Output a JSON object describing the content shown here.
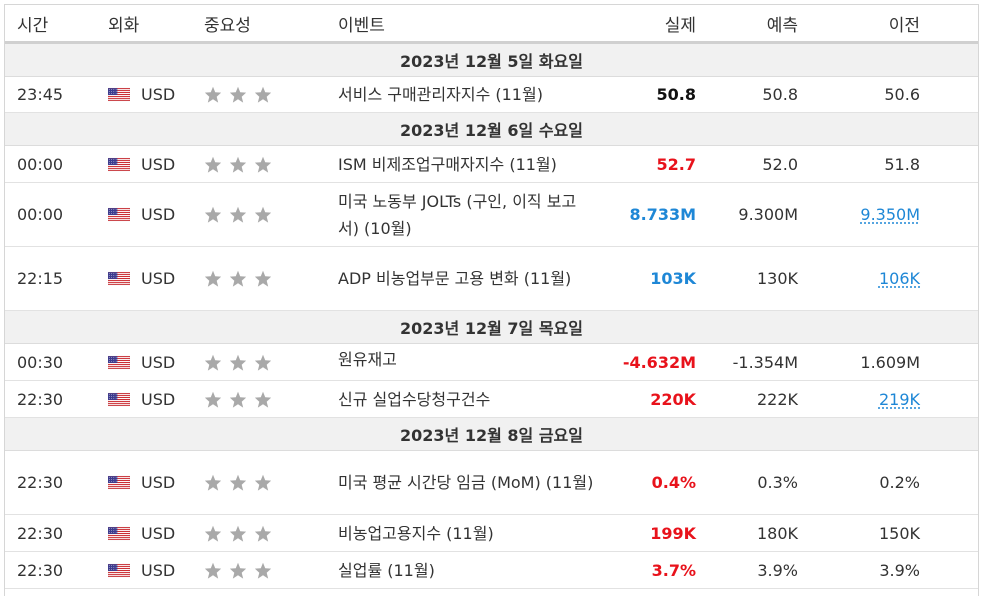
{
  "headers": {
    "time": "시간",
    "currency": "외화",
    "importance": "중요성",
    "event": "이벤트",
    "actual": "실제",
    "forecast": "예측",
    "previous": "이전"
  },
  "colors": {
    "actual_up": "#1e87d6",
    "actual_down": "#e8121b",
    "link": "#1e87d6",
    "star": "#a9a9a9"
  },
  "dates": [
    "2023년 12월 5일 화요일",
    "2023년 12월 6일 수요일",
    "2023년 12월 7일 목요일",
    "2023년 12월 8일 금요일"
  ],
  "rows": [
    {
      "time": "23:45",
      "currency": "USD",
      "stars": 3,
      "event": "서비스 구매관리자지수 (11월)",
      "actual": "50.8",
      "forecast": "50.8",
      "previous": "50.6"
    },
    {
      "time": "00:00",
      "currency": "USD",
      "stars": 3,
      "event": "ISM 비제조업구매자지수 (11월)",
      "actual": "52.7",
      "forecast": "52.0",
      "previous": "51.8"
    },
    {
      "time": "00:00",
      "currency": "USD",
      "stars": 3,
      "event": "미국 노동부 JOLTs (구인, 이직 보고서) (10월)",
      "actual": "8.733M",
      "forecast": "9.300M",
      "previous": "9.350M"
    },
    {
      "time": "22:15",
      "currency": "USD",
      "stars": 3,
      "event": "ADP 비농업부문 고용 변화 (11월)",
      "actual": "103K",
      "forecast": "130K",
      "previous": "106K"
    },
    {
      "time": "00:30",
      "currency": "USD",
      "stars": 3,
      "event": "원유재고",
      "actual": "-4.632M",
      "forecast": "-1.354M",
      "previous": "1.609M"
    },
    {
      "time": "22:30",
      "currency": "USD",
      "stars": 3,
      "event": "신규 실업수당청구건수",
      "actual": "220K",
      "forecast": "222K",
      "previous": "219K"
    },
    {
      "time": "22:30",
      "currency": "USD",
      "stars": 3,
      "event": "미국 평균 시간당 임금 (MoM) (11월)",
      "actual": "0.4%",
      "forecast": "0.3%",
      "previous": "0.2%"
    },
    {
      "time": "22:30",
      "currency": "USD",
      "stars": 3,
      "event": "비농업고용지수 (11월)",
      "actual": "199K",
      "forecast": "180K",
      "previous": "150K"
    },
    {
      "time": "22:30",
      "currency": "USD",
      "stars": 3,
      "event": "실업률 (11월)",
      "actual": "3.7%",
      "forecast": "3.9%",
      "previous": "3.9%"
    }
  ]
}
